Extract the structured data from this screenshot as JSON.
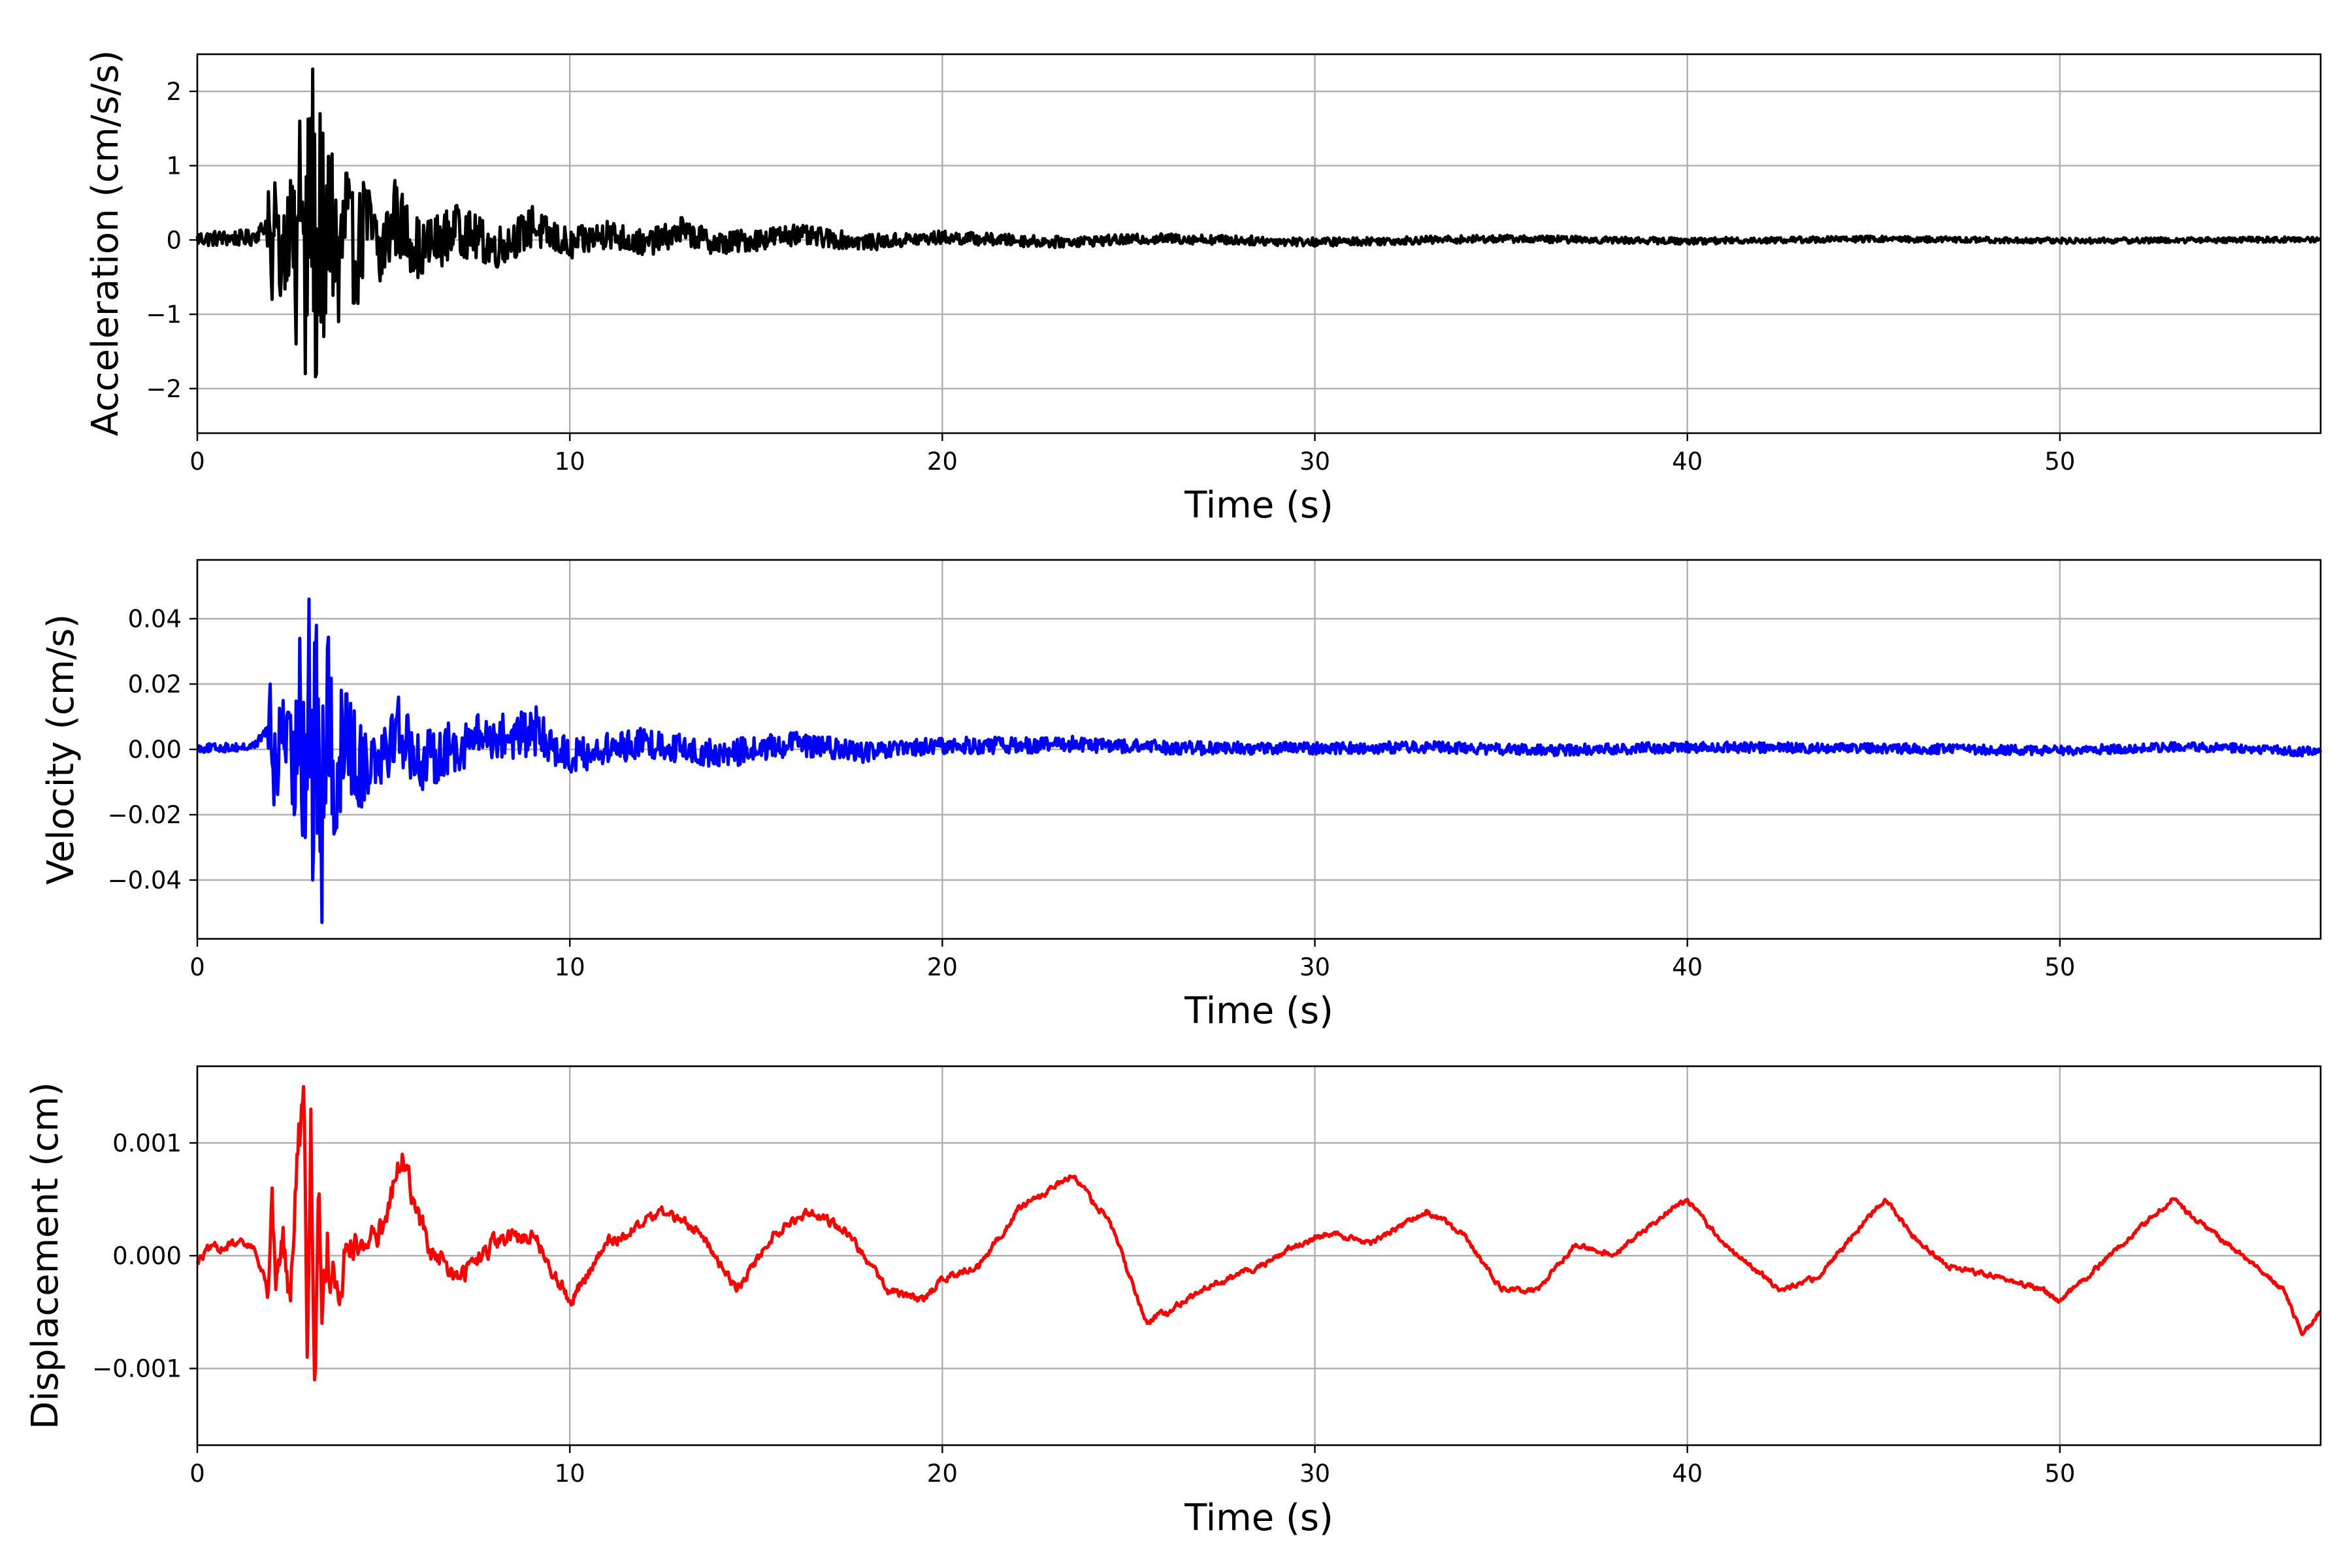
{
  "chart_data": [
    {
      "type": "line",
      "title": "",
      "xlabel": "Time (s)",
      "ylabel": "Acceleration (cm/s/s)",
      "xlim": [
        0,
        57
      ],
      "ylim": [
        -2.6,
        2.5
      ],
      "xticks": [
        0,
        10,
        20,
        30,
        40,
        50
      ],
      "xtick_labels": [
        "0",
        "10",
        "20",
        "30",
        "40",
        "50"
      ],
      "yticks": [
        -2,
        -1,
        0,
        1,
        2
      ],
      "ytick_labels": [
        "−2",
        "−1",
        "0",
        "1",
        "2"
      ],
      "grid": true,
      "color": "#000000",
      "series": [
        {
          "x": [
            0,
            1.5,
            1.9,
            2.0,
            2.1,
            2.2,
            2.5,
            2.65,
            2.75,
            2.9,
            3.0,
            3.1,
            3.2,
            3.3,
            3.4,
            3.6,
            3.8,
            4.0,
            4.2,
            4.5,
            4.9,
            5.3,
            6.0,
            7.0,
            8.0,
            9.0,
            10.0,
            11.0,
            12.0,
            13.0,
            14.0,
            16.0,
            18.0,
            20.0,
            23.0,
            26.0,
            30.0,
            35.0,
            40.0,
            45.0,
            50.0,
            57.0
          ],
          "y": [
            0.05,
            0.08,
            0.65,
            -0.8,
            0.5,
            -0.6,
            0.8,
            -1.4,
            1.6,
            -1.8,
            1.4,
            2.3,
            -1.8,
            1.7,
            -1.3,
            1.0,
            -1.1,
            0.9,
            -0.85,
            0.65,
            -0.55,
            0.8,
            -0.4,
            0.4,
            -0.3,
            0.45,
            -0.2,
            0.25,
            -0.15,
            0.3,
            -0.15,
            0.2,
            -0.1,
            0.1,
            -0.08,
            0.06,
            -0.08,
            0.05,
            -0.04,
            0.04,
            -0.03,
            0.02
          ],
          "envelope": {
            "x": [
              0,
              1.8,
              2.0,
              2.5,
              2.8,
              3.0,
              3.2,
              3.4,
              3.7,
              4.0,
              4.5,
              5.0,
              6.0,
              7.0,
              8.0,
              9.0,
              10.0,
              12.0,
              14.0,
              16.0,
              18.0,
              20.0,
              24.0,
              28.0,
              32.0,
              38.0,
              45.0,
              57.0
            ],
            "a": [
              0.12,
              0.12,
              0.75,
              0.8,
              1.5,
              1.8,
              2.1,
              1.7,
              1.3,
              1.0,
              0.75,
              0.65,
              0.45,
              0.38,
              0.32,
              0.3,
              0.24,
              0.2,
              0.18,
              0.16,
              0.12,
              0.1,
              0.08,
              0.07,
              0.06,
              0.05,
              0.045,
              0.04
            ]
          }
        }
      ]
    },
    {
      "type": "line",
      "title": "",
      "xlabel": "Time (s)",
      "ylabel": "Velocity (cm/s)",
      "xlim": [
        0,
        57
      ],
      "ylim": [
        -0.058,
        0.058
      ],
      "xticks": [
        0,
        10,
        20,
        30,
        40,
        50
      ],
      "xtick_labels": [
        "0",
        "10",
        "20",
        "30",
        "40",
        "50"
      ],
      "yticks": [
        -0.04,
        -0.02,
        0.0,
        0.02,
        0.04
      ],
      "ytick_labels": [
        "−0.04",
        "−0.02",
        "0.00",
        "0.02",
        "0.04"
      ],
      "grid": true,
      "color": "#0000ff",
      "series": [
        {
          "x": [
            0,
            1.5,
            1.95,
            2.05,
            2.3,
            2.6,
            2.75,
            2.9,
            3.0,
            3.1,
            3.2,
            3.35,
            3.5,
            3.7,
            4.0,
            4.3,
            5.4,
            6.0,
            7.5,
            9.1,
            10.0,
            12.0,
            14.0,
            16.0,
            18.0,
            20.0,
            23.5,
            27.0,
            30.0,
            33.0,
            36.0,
            40.0,
            45.0,
            50.0,
            53.0,
            55.0,
            56.5,
            57.0
          ],
          "y": [
            0.001,
            0.002,
            0.02,
            -0.017,
            0.015,
            -0.02,
            0.034,
            -0.027,
            0.046,
            -0.04,
            0.038,
            -0.053,
            0.031,
            -0.025,
            0.017,
            -0.015,
            0.016,
            -0.011,
            0.01,
            0.013,
            -0.006,
            0.006,
            -0.005,
            0.005,
            -0.003,
            0.003,
            0.004,
            0.001,
            0.001,
            0.002,
            -0.001,
            0.002,
            0.001,
            -0.001,
            0.002,
            0.001,
            -0.002,
            -0.001
          ],
          "envelope": {
            "x": [
              0,
              1.8,
              2.0,
              2.5,
              2.8,
              3.0,
              3.2,
              3.5,
              4.0,
              4.5,
              5.0,
              6.0,
              7.0,
              8.0,
              9.0,
              10.0,
              12.0,
              14.0,
              16.0,
              18.0,
              20.0,
              24.0,
              30.0,
              40.0,
              57.0
            ],
            "a": [
              0.0015,
              0.0015,
              0.015,
              0.016,
              0.03,
              0.04,
              0.045,
              0.03,
              0.02,
              0.014,
              0.013,
              0.01,
              0.009,
              0.008,
              0.008,
              0.006,
              0.005,
              0.005,
              0.004,
              0.0035,
              0.003,
              0.0025,
              0.002,
              0.0018,
              0.0015
            ]
          }
        }
      ]
    },
    {
      "type": "line",
      "title": "",
      "xlabel": "Time (s)",
      "ylabel": "Displacement (cm)",
      "xlim": [
        0,
        57
      ],
      "ylim": [
        -0.00168,
        0.00168
      ],
      "xticks": [
        0,
        10,
        20,
        30,
        40,
        50
      ],
      "xtick_labels": [
        "0",
        "10",
        "20",
        "30",
        "40",
        "50"
      ],
      "yticks": [
        -0.001,
        0.0,
        0.001
      ],
      "ytick_labels": [
        "−0.001",
        "0.000",
        "0.001"
      ],
      "grid": true,
      "color": "#ff0000",
      "series": [
        {
          "x": [
            0,
            0.3,
            1.0,
            1.5,
            1.9,
            2.0,
            2.1,
            2.3,
            2.5,
            2.7,
            2.85,
            2.95,
            3.05,
            3.15,
            3.25,
            3.35,
            3.5,
            3.8,
            4.0,
            4.5,
            5.0,
            5.5,
            5.8,
            6.3,
            7.0,
            8.0,
            9.0,
            10.0,
            11.0,
            12.5,
            13.5,
            14.5,
            15.5,
            16.5,
            17.5,
            18.5,
            19.5,
            20.0,
            21.0,
            22.0,
            23.0,
            23.5,
            24.5,
            25.5,
            26.0,
            27.0,
            28.5,
            29.5,
            30.5,
            31.5,
            33.0,
            34.0,
            35.0,
            36.0,
            37.0,
            38.0,
            39.5,
            40.0,
            41.0,
            42.5,
            43.5,
            44.5,
            45.3,
            46.0,
            47.0,
            48.5,
            49.5,
            50.0,
            51.0,
            53.0,
            54.5,
            56.0,
            56.5,
            57.0
          ],
          "y": [
            -5e-05,
            5e-05,
            0.0001,
            8e-05,
            -0.0003,
            0.0006,
            -0.0003,
            0.00025,
            -0.0004,
            0.0009,
            0.0015,
            -0.0009,
            0.0013,
            -0.0011,
            0.0005,
            -0.0006,
            0.0002,
            -0.0004,
            0.0001,
            0.0001,
            0.0003,
            0.0009,
            0.0005,
            0.0,
            -0.0002,
            0.0001,
            0.0002,
            -0.0004,
            0.0001,
            0.0004,
            0.0002,
            -0.0003,
            0.0002,
            0.0004,
            0.0002,
            -0.0003,
            -0.0004,
            -0.0002,
            -0.0001,
            0.0004,
            0.0006,
            0.0007,
            0.0003,
            -0.0006,
            -0.0005,
            -0.0003,
            -0.0001,
            0.0001,
            0.0002,
            0.0001,
            0.0004,
            0.0002,
            -0.0003,
            -0.0003,
            0.0001,
            0.0,
            0.0004,
            0.0005,
            0.0001,
            -0.0003,
            -0.0002,
            0.0002,
            0.0005,
            0.0002,
            -0.0001,
            -0.0002,
            -0.0003,
            -0.0004,
            -0.0001,
            0.0005,
            0.0001,
            -0.0003,
            -0.0007,
            -0.0005
          ],
          "envelope": {
            "x": [
              0,
              1.8,
              2.0,
              2.5,
              2.8,
              3.0,
              3.2,
              3.5,
              4.0,
              5.0,
              6.0,
              8.0,
              10.0,
              15.0,
              20.0,
              30.0,
              40.0,
              57.0
            ],
            "a": [
              5e-05,
              5e-05,
              0.0002,
              0.0002,
              0.0004,
              0.0004,
              0.0004,
              0.0003,
              0.0002,
              0.00015,
              0.00012,
              0.0001,
              7e-05,
              5e-05,
              4e-05,
              3e-05,
              3e-05,
              3e-05
            ]
          }
        }
      ]
    }
  ]
}
